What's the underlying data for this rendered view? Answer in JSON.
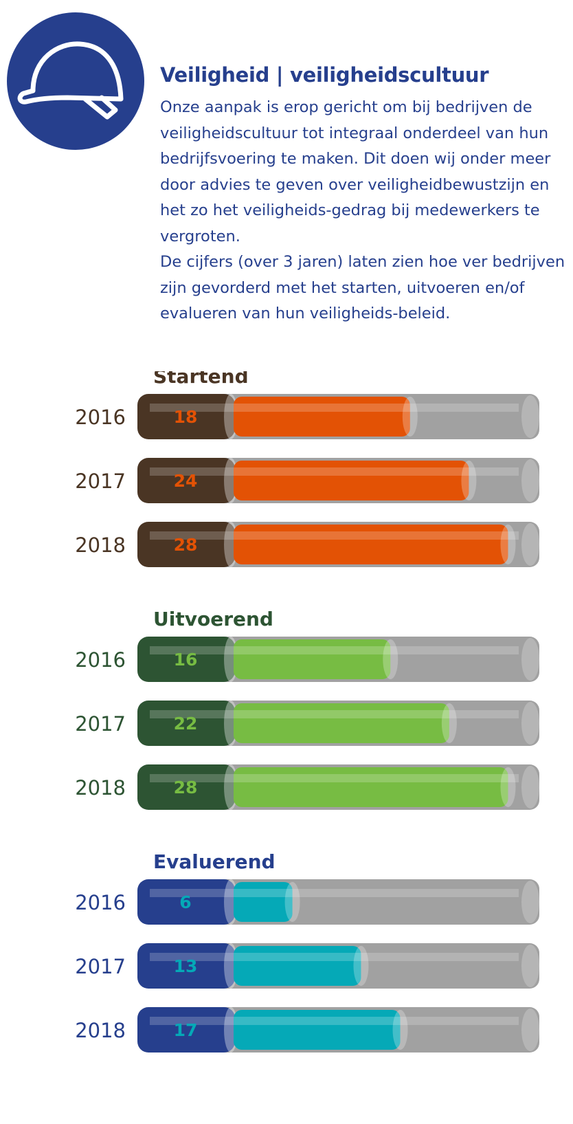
{
  "header": {
    "icon": "hard-hat-icon",
    "title": "Veiligheid | veiligheidscultuur",
    "intro_paragraph_1": "Onze aanpak is erop gericht om bij bedrijven de veiligheidscultuur tot integraal onderdeel van hun bedrijfsvoering te maken. Dit doen wij onder meer door advies te geven over veiligheidbewustzijn en het zo het veiligheids-gedrag bij medewerkers te vergroten.",
    "intro_paragraph_2": "De cijfers (over 3 jaren) laten zien hoe ver bedrijven zijn gevorderd met het starten, uitvoeren en/of evalueren van hun veiligheids-beleid."
  },
  "colors": {
    "brand_blue": "#263f8d",
    "track_gray": "#a1a1a1"
  },
  "chart_data": [
    {
      "type": "bar",
      "title": "Startend",
      "categories": [
        "2016",
        "2017",
        "2018"
      ],
      "values": [
        18,
        24,
        28
      ],
      "xlim": [
        0,
        30
      ],
      "colors": {
        "title": "#4a3524",
        "cap": "#4a3524",
        "fill": "#e35205",
        "value_label": "#e35205",
        "year_label": "#4a3524"
      }
    },
    {
      "type": "bar",
      "title": "Uitvoerend",
      "categories": [
        "2016",
        "2017",
        "2018"
      ],
      "values": [
        16,
        22,
        28
      ],
      "xlim": [
        0,
        30
      ],
      "colors": {
        "title": "#2d5433",
        "cap": "#2d5433",
        "fill": "#77bc43",
        "value_label": "#77bc43",
        "year_label": "#2d5433"
      }
    },
    {
      "type": "bar",
      "title": "Evaluerend",
      "categories": [
        "2016",
        "2017",
        "2018"
      ],
      "values": [
        6,
        13,
        17
      ],
      "xlim": [
        0,
        30
      ],
      "colors": {
        "title": "#263f8d",
        "cap": "#263f8d",
        "fill": "#05a9b7",
        "value_label": "#05a9b7",
        "year_label": "#263f8d"
      }
    }
  ]
}
